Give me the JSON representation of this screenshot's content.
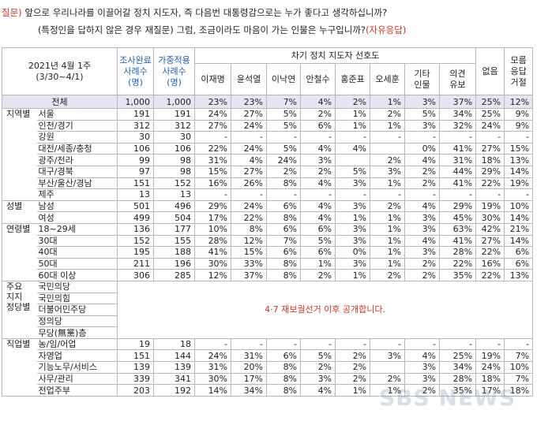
{
  "question": {
    "label": "질문)",
    "line1": "앞으로 우리나라를 이끌어갈 정치 지도자, 즉 다음번 대통령감으로는 누가 좋다고 생각하십니까?",
    "line2": "(특정인을 답하지 않은 경우 재질문) 그럼, 조금이라도 마음이 가는 인물은 누구입니까?",
    "line2_accent": "(자유응답)"
  },
  "header": {
    "survey_date": "2021년 4월 1주",
    "survey_period": "(3/30~4/1)",
    "sample_done": [
      "조사완료",
      "사례수",
      "(명)"
    ],
    "sample_weighted": [
      "가중적용",
      "사례수",
      "(명)"
    ],
    "group_title": "차기 정치 지도자 선호도",
    "candidates": [
      "이재명",
      "윤석열",
      "이낙연",
      "안철수",
      "홍준표",
      "오세훈"
    ],
    "other": [
      "기타",
      "인물"
    ],
    "opinion_reserve": [
      "의견",
      "유보"
    ],
    "none": "없음",
    "unknown": [
      "모름",
      "응답",
      "거절"
    ]
  },
  "total": {
    "label": "전체",
    "n": "1,000",
    "w": "1,000",
    "vals": [
      "23%",
      "23%",
      "7%",
      "4%",
      "2%",
      "1%",
      "3%",
      "37%",
      "25%",
      "12%"
    ]
  },
  "groups": [
    {
      "cat": [
        "지역별"
      ],
      "rows": [
        {
          "label": "서울",
          "n": "191",
          "w": "191",
          "vals": [
            "24%",
            "27%",
            "5%",
            "2%",
            "1%",
            "2%",
            "5%",
            "34%",
            "25%",
            "9%"
          ]
        },
        {
          "label": "인천/경기",
          "n": "312",
          "w": "312",
          "vals": [
            "27%",
            "24%",
            "5%",
            "6%",
            "1%",
            "1%",
            "3%",
            "32%",
            "24%",
            "9%"
          ]
        },
        {
          "label": "강원",
          "n": "30",
          "w": "30",
          "vals": [
            "-",
            "-",
            "-",
            "-",
            "-",
            "-",
            "-",
            "-",
            "-",
            "-"
          ]
        },
        {
          "label": "대전/세종/충청",
          "n": "106",
          "w": "106",
          "vals": [
            "22%",
            "24%",
            "5%",
            "4%",
            "4%",
            "",
            "0%",
            "41%",
            "27%",
            "15%"
          ]
        },
        {
          "label": "광주/전라",
          "n": "99",
          "w": "98",
          "vals": [
            "31%",
            "4%",
            "24%",
            "3%",
            "",
            "2%",
            "4%",
            "31%",
            "18%",
            "13%"
          ]
        },
        {
          "label": "대구/경북",
          "n": "97",
          "w": "98",
          "vals": [
            "15%",
            "27%",
            "2%",
            "2%",
            "5%",
            "3%",
            "2%",
            "44%",
            "29%",
            "14%"
          ]
        },
        {
          "label": "부산/울산/경남",
          "n": "151",
          "w": "152",
          "vals": [
            "16%",
            "26%",
            "8%",
            "4%",
            "3%",
            "1%",
            "2%",
            "41%",
            "22%",
            "19%"
          ]
        },
        {
          "label": "제주",
          "n": "13",
          "w": "13",
          "vals": [
            "-",
            "-",
            "-",
            "-",
            "-",
            "-",
            "-",
            "-",
            "-",
            "-"
          ]
        }
      ]
    },
    {
      "cat": [
        "성별"
      ],
      "rows": [
        {
          "label": "남성",
          "n": "501",
          "w": "496",
          "vals": [
            "29%",
            "24%",
            "6%",
            "4%",
            "3%",
            "2%",
            "4%",
            "29%",
            "19%",
            "10%"
          ]
        },
        {
          "label": "여성",
          "n": "499",
          "w": "504",
          "vals": [
            "17%",
            "22%",
            "8%",
            "4%",
            "1%",
            "1%",
            "3%",
            "45%",
            "30%",
            "14%"
          ]
        }
      ]
    },
    {
      "cat": [
        "연령별"
      ],
      "rows": [
        {
          "label": "18~29세",
          "n": "136",
          "w": "177",
          "vals": [
            "10%",
            "8%",
            "6%",
            "6%",
            "3%",
            "1%",
            "3%",
            "63%",
            "42%",
            "21%"
          ]
        },
        {
          "label": "30대",
          "n": "152",
          "w": "155",
          "vals": [
            "28%",
            "12%",
            "7%",
            "5%",
            "3%",
            "1%",
            "4%",
            "41%",
            "27%",
            "14%"
          ]
        },
        {
          "label": "40대",
          "n": "195",
          "w": "188",
          "vals": [
            "41%",
            "15%",
            "6%",
            "6%",
            "0%",
            "1%",
            "3%",
            "28%",
            "22%",
            "6%"
          ]
        },
        {
          "label": "50대",
          "n": "211",
          "w": "196",
          "vals": [
            "30%",
            "33%",
            "8%",
            "1%",
            "3%",
            "1%",
            "2%",
            "22%",
            "16%",
            "6%"
          ]
        },
        {
          "label": "60대 이상",
          "n": "306",
          "w": "285",
          "vals": [
            "12%",
            "37%",
            "8%",
            "2%",
            "1%",
            "2%",
            "2%",
            "35%",
            "22%",
            "13%"
          ]
        }
      ]
    },
    {
      "cat": [
        "주요",
        "지지",
        "정당별"
      ],
      "notice": "4·7 재보궐선거 이후 공개합니다.",
      "rows": [
        {
          "label": "국민의당"
        },
        {
          "label": "국민의힘"
        },
        {
          "label": "더불어민주당"
        },
        {
          "label": "정의당"
        },
        {
          "label": "무당(無黨)층"
        }
      ]
    },
    {
      "cat": [
        "직업별"
      ],
      "rows": [
        {
          "label": "농/임/어업",
          "n": "19",
          "w": "18",
          "vals": [
            "-",
            "-",
            "-",
            "-",
            "-",
            "-",
            "-",
            "-",
            "-",
            "-"
          ]
        },
        {
          "label": "자영업",
          "n": "151",
          "w": "144",
          "vals": [
            "24%",
            "31%",
            "6%",
            "5%",
            "2%",
            "3%",
            "4%",
            "25%",
            "19%",
            "7%"
          ]
        },
        {
          "label": "기능노무/서비스",
          "n": "139",
          "w": "139",
          "vals": [
            "31%",
            "20%",
            "8%",
            "2%",
            "2%",
            "",
            "3%",
            "34%",
            "24%",
            "10%"
          ]
        },
        {
          "label": "사무/관리",
          "n": "339",
          "w": "341",
          "vals": [
            "30%",
            "17%",
            "8%",
            "3%",
            "2%",
            "2%",
            "3%",
            "28%",
            "18%",
            "7%"
          ]
        },
        {
          "label": "전업주부",
          "n": "203",
          "w": "192",
          "vals": [
            "14%",
            "34%",
            "8%",
            "4%",
            "1%",
            "1%",
            "2%",
            "35%",
            "17%",
            "18%"
          ]
        }
      ]
    }
  ],
  "watermark": "SBS NEWS"
}
